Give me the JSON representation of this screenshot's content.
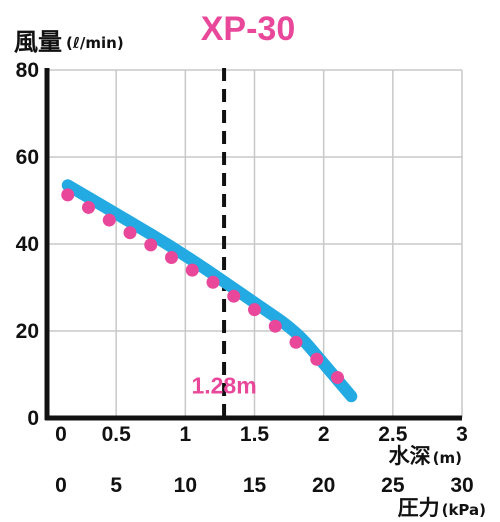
{
  "chart_data": {
    "type": "line",
    "title": "XP-30",
    "ylabel": "風量",
    "ylabel_unit": "(ℓ/min)",
    "xlabel": "水深",
    "xlabel_unit": "(m)",
    "x2label": "圧力",
    "x2label_unit": "(kPa)",
    "xlim": [
      0,
      3
    ],
    "ylim": [
      0,
      80
    ],
    "x_ticks": [
      "0",
      "0.5",
      "1",
      "1.5",
      "2",
      "2.5",
      "3"
    ],
    "x_tick_values": [
      0,
      0.5,
      1,
      1.5,
      2,
      2.5,
      3
    ],
    "x2_ticks": [
      "0",
      "5",
      "10",
      "15",
      "20",
      "25",
      "30"
    ],
    "y_ticks": [
      "0",
      "20",
      "40",
      "60",
      "80"
    ],
    "y_tick_values": [
      0,
      20,
      40,
      60,
      80
    ],
    "grid": true,
    "series": [
      {
        "style": "solid-line",
        "color": "#23aae3",
        "x": [
          0.15,
          0.5,
          1.0,
          1.5,
          1.8,
          2.0,
          2.2
        ],
        "y": [
          53.5,
          47,
          37.5,
          26.5,
          20,
          12.5,
          5
        ]
      },
      {
        "style": "dots",
        "color": "#e8479a",
        "x": [
          0.15,
          0.3,
          0.45,
          0.6,
          0.75,
          0.9,
          1.05,
          1.2,
          1.35,
          1.5,
          1.65,
          1.8,
          1.95,
          2.1
        ],
        "y": [
          51.3,
          48.4,
          45.5,
          42.6,
          39.8,
          36.9,
          34.0,
          31.2,
          28.0,
          24.9,
          21.1,
          17.4,
          13.5,
          9.3
        ]
      }
    ],
    "annotations": [
      {
        "type": "vertical-dashed-line",
        "x": 1.28,
        "label": "1.28m",
        "label_y": 7.5
      }
    ]
  }
}
